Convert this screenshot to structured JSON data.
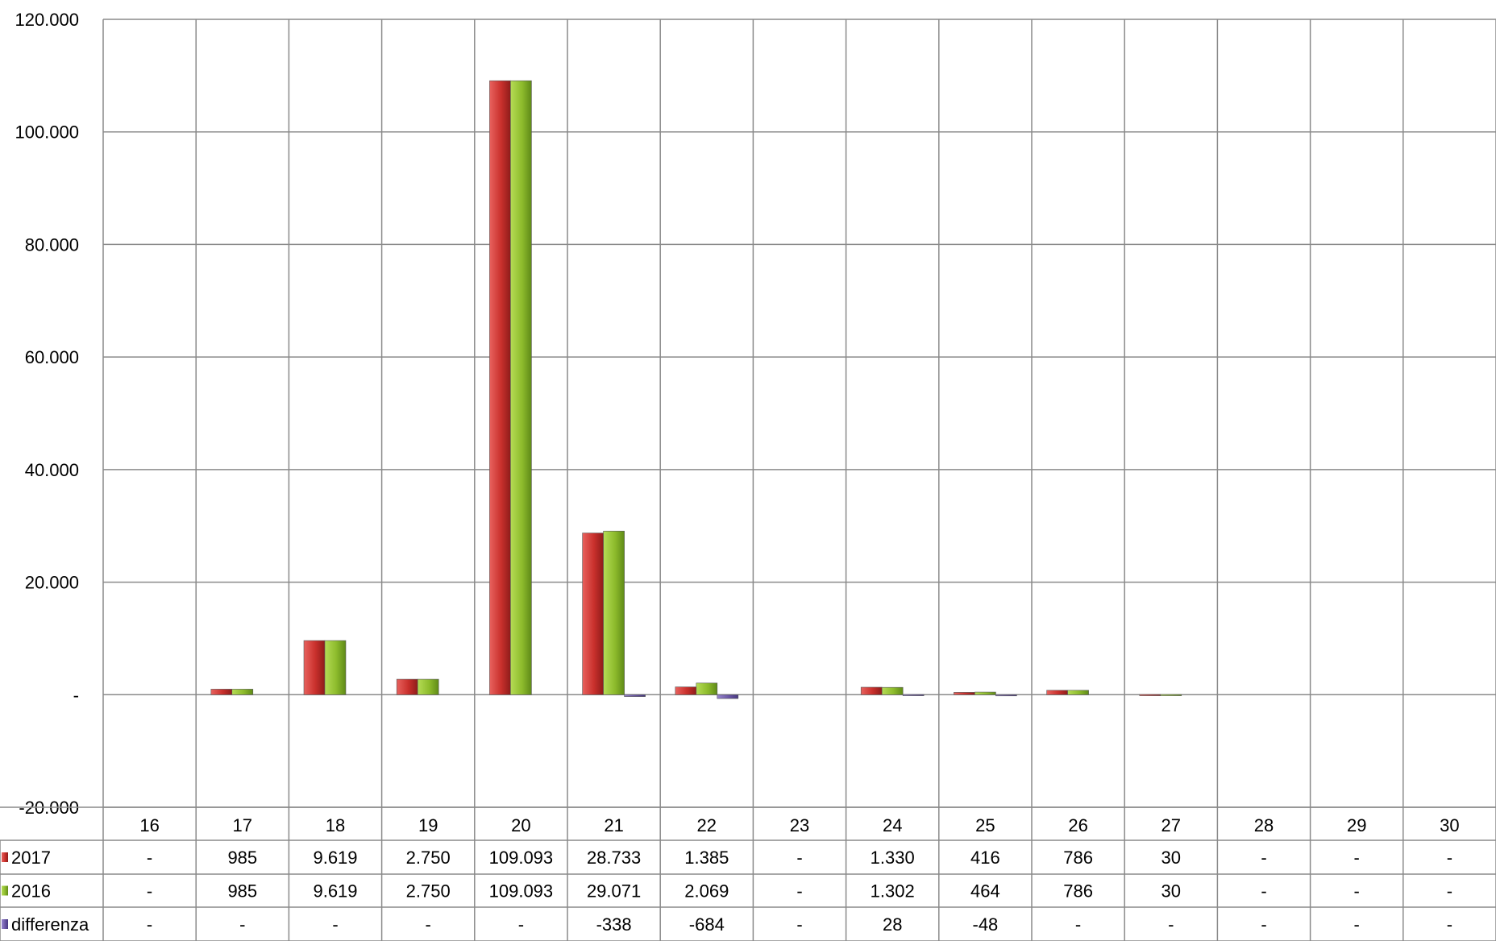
{
  "chart_data": {
    "type": "bar",
    "categories": [
      "16",
      "17",
      "18",
      "19",
      "20",
      "21",
      "22",
      "23",
      "24",
      "25",
      "26",
      "27",
      "28",
      "29",
      "30"
    ],
    "ylim": [
      -20000,
      120000
    ],
    "y_ticks": [
      -20000,
      0,
      20000,
      40000,
      60000,
      80000,
      100000,
      120000
    ],
    "y_tick_labels": [
      "-20.000",
      "-",
      "20.000",
      "40.000",
      "60.000",
      "80.000",
      "100.000",
      "120.000"
    ],
    "grid": true,
    "legend_placement": "data-table-left",
    "series": [
      {
        "name": "2017",
        "color": "#c9302c",
        "values": [
          0,
          985,
          9619,
          2750,
          109093,
          28733,
          1385,
          0,
          1330,
          416,
          786,
          30,
          0,
          0,
          0
        ],
        "labels": [
          "-",
          "985",
          "9.619",
          "2.750",
          "109.093",
          "28.733",
          "1.385",
          "-",
          "1.330",
          "416",
          "786",
          "30",
          "-",
          "-",
          "-"
        ]
      },
      {
        "name": "2016",
        "color": "#8dbb2c",
        "values": [
          0,
          985,
          9619,
          2750,
          109093,
          29071,
          2069,
          0,
          1302,
          464,
          786,
          30,
          0,
          0,
          0
        ],
        "labels": [
          "-",
          "985",
          "9.619",
          "2.750",
          "109.093",
          "29.071",
          "2.069",
          "-",
          "1.302",
          "464",
          "786",
          "30",
          "-",
          "-",
          "-"
        ]
      },
      {
        "name": "differenza",
        "color": "#6b57a6",
        "values": [
          0,
          0,
          0,
          0,
          0,
          -338,
          -684,
          0,
          28,
          -48,
          0,
          0,
          0,
          0,
          0
        ],
        "labels": [
          "-",
          "-",
          "-",
          "-",
          "-",
          "-338",
          "-684",
          "-",
          "28",
          "-48",
          "-",
          "-",
          "-",
          "-",
          "-"
        ]
      }
    ]
  }
}
